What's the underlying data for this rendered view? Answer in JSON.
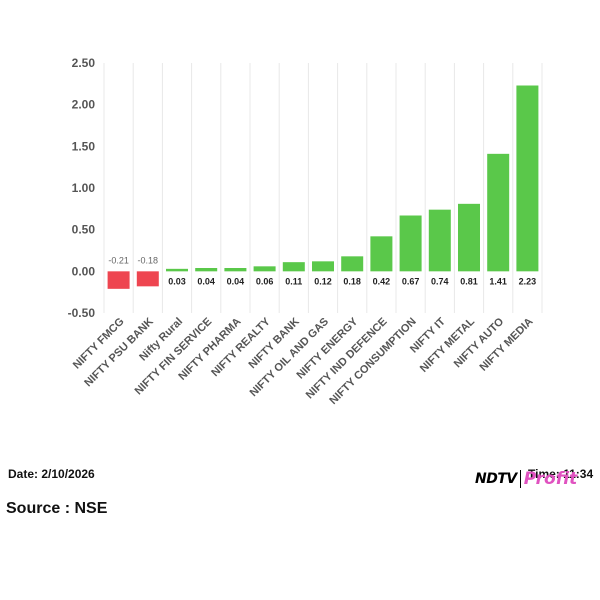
{
  "chart_data": {
    "type": "bar",
    "categories": [
      "NIFTY FMCG",
      "NIFTY PSU BANK",
      "Nifty Rural",
      "NIFTY FIN SERVICE",
      "NIFTY PHARMA",
      "NIFTY REALTY",
      "NIFTY BANK",
      "NIFTY OIL AND GAS",
      "NIFTY ENERGY",
      "NIFTY IND DEFENCE",
      "NIFTY CONSUMPTION",
      "NIFTY IT",
      "NIFTY METAL",
      "NIFTY AUTO",
      "NIFTY MEDIA"
    ],
    "values": [
      -0.21,
      -0.18,
      0.03,
      0.04,
      0.04,
      0.06,
      0.11,
      0.12,
      0.18,
      0.42,
      0.67,
      0.74,
      0.81,
      1.41,
      2.23
    ],
    "data_labels": [
      "-0.21",
      "-0.18",
      "0.03",
      "0.04",
      "0.04",
      "0.06",
      "0.11",
      "0.12",
      "0.18",
      "0.42",
      "0.67",
      "0.74",
      "0.81",
      "1.41",
      "2.23"
    ],
    "ylim": [
      -0.5,
      2.5
    ],
    "yticks": [
      -0.5,
      0,
      0.5,
      1,
      1.5,
      2,
      2.5
    ],
    "ytick_labels": [
      "-0.50",
      "0.00",
      "0.50",
      "1.00",
      "1.50",
      "2.00",
      "2.50"
    ],
    "grid": "vertical",
    "legend": "none",
    "colors": {
      "positive": "#5ac84a",
      "negative": "#ee4550",
      "grid": "#e8e8e8",
      "label": "#555555"
    }
  },
  "footer": {
    "date": "Date: 2/10/2026",
    "source": "Source : NSE",
    "time": "Time: 11:34"
  },
  "logo": {
    "brand": "NDTV",
    "profit": "Profit"
  }
}
